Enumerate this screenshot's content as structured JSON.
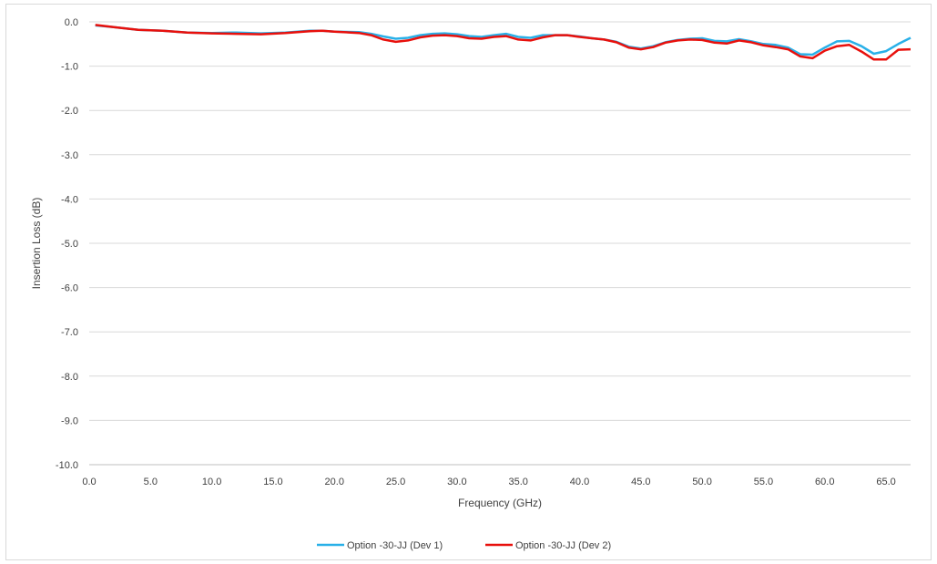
{
  "chart_data": {
    "type": "line",
    "title": "",
    "xlabel": "Frequency (GHz)",
    "ylabel": "Insertion Loss (dB)",
    "xlim": [
      0,
      67
    ],
    "ylim": [
      -10,
      0
    ],
    "x_ticks": [
      "0.0",
      "5.0",
      "10.0",
      "15.0",
      "20.0",
      "25.0",
      "30.0",
      "35.0",
      "40.0",
      "45.0",
      "50.0",
      "55.0",
      "60.0",
      "65.0"
    ],
    "y_ticks": [
      "0.0",
      "-1.0",
      "-2.0",
      "-3.0",
      "-4.0",
      "-5.0",
      "-6.0",
      "-7.0",
      "-8.0",
      "-9.0",
      "-10.0"
    ],
    "grid": "horizontal",
    "legend_position": "bottom",
    "series": [
      {
        "name": "Option -30-JJ (Dev 1)",
        "color": "#29b0e8",
        "x": [
          0.5,
          2,
          4,
          6,
          8,
          10,
          12,
          14,
          16,
          18,
          19,
          20,
          22,
          23,
          24,
          25,
          26,
          27,
          28,
          29,
          30,
          31,
          32,
          33,
          34,
          35,
          36,
          37,
          38,
          39,
          40,
          41,
          42,
          43,
          44,
          45,
          46,
          47,
          48,
          49,
          50,
          51,
          52,
          53,
          54,
          55,
          56,
          57,
          58,
          59,
          60,
          61,
          62,
          63,
          64,
          65,
          66,
          67
        ],
        "values": [
          -0.08,
          -0.12,
          -0.18,
          -0.2,
          -0.24,
          -0.25,
          -0.24,
          -0.26,
          -0.24,
          -0.2,
          -0.2,
          -0.22,
          -0.23,
          -0.27,
          -0.33,
          -0.38,
          -0.36,
          -0.3,
          -0.27,
          -0.26,
          -0.28,
          -0.32,
          -0.34,
          -0.3,
          -0.27,
          -0.34,
          -0.36,
          -0.3,
          -0.3,
          -0.3,
          -0.33,
          -0.37,
          -0.4,
          -0.45,
          -0.56,
          -0.6,
          -0.55,
          -0.46,
          -0.41,
          -0.38,
          -0.37,
          -0.43,
          -0.44,
          -0.39,
          -0.44,
          -0.5,
          -0.52,
          -0.58,
          -0.73,
          -0.74,
          -0.58,
          -0.44,
          -0.43,
          -0.55,
          -0.72,
          -0.66,
          -0.5,
          -0.36
        ]
      },
      {
        "name": "Option -30-JJ (Dev 2)",
        "color": "#e8100c",
        "x": [
          0.5,
          2,
          4,
          6,
          8,
          10,
          12,
          14,
          16,
          18,
          19,
          20,
          22,
          23,
          24,
          25,
          26,
          27,
          28,
          29,
          30,
          31,
          32,
          33,
          34,
          35,
          36,
          37,
          38,
          39,
          40,
          41,
          42,
          43,
          44,
          45,
          46,
          47,
          48,
          49,
          50,
          51,
          52,
          53,
          54,
          55,
          56,
          57,
          58,
          59,
          60,
          61,
          62,
          63,
          64,
          65,
          66,
          67
        ],
        "values": [
          -0.07,
          -0.12,
          -0.18,
          -0.2,
          -0.24,
          -0.26,
          -0.27,
          -0.28,
          -0.25,
          -0.21,
          -0.2,
          -0.22,
          -0.25,
          -0.3,
          -0.4,
          -0.45,
          -0.42,
          -0.35,
          -0.31,
          -0.3,
          -0.32,
          -0.37,
          -0.38,
          -0.34,
          -0.32,
          -0.4,
          -0.42,
          -0.35,
          -0.3,
          -0.3,
          -0.34,
          -0.37,
          -0.4,
          -0.46,
          -0.58,
          -0.62,
          -0.57,
          -0.47,
          -0.42,
          -0.4,
          -0.41,
          -0.47,
          -0.49,
          -0.42,
          -0.46,
          -0.53,
          -0.57,
          -0.62,
          -0.78,
          -0.82,
          -0.65,
          -0.55,
          -0.52,
          -0.67,
          -0.85,
          -0.85,
          -0.63,
          -0.62
        ]
      }
    ]
  }
}
